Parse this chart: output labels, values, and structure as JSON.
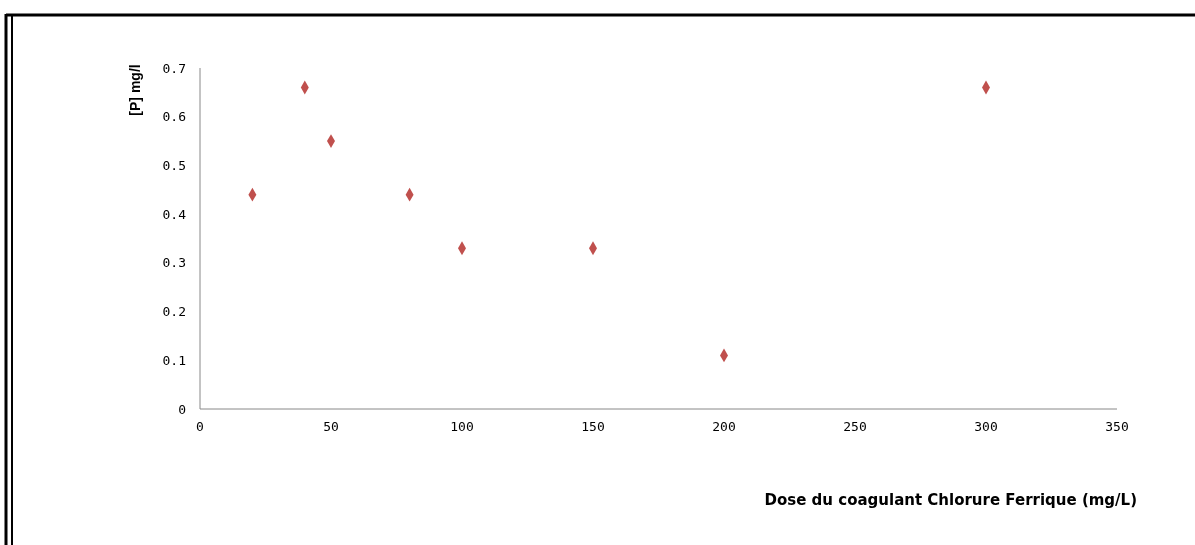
{
  "chart_data": {
    "type": "scatter",
    "xlabel": "Dose du coagulant Chlorure Ferrique (mg/L)",
    "ylabel": "[P] mg/l",
    "x": [
      20,
      40,
      50,
      80,
      100,
      150,
      200,
      300
    ],
    "series": [
      {
        "color": "#c0504d",
        "values": [
          0.44,
          0.66,
          0.55,
          0.44,
          0.33,
          0.33,
          0.11,
          0.66
        ]
      }
    ],
    "xlim": [
      0,
      350
    ],
    "xticks": [
      0,
      50,
      100,
      150,
      200,
      250,
      300,
      350
    ],
    "ylim": [
      0,
      0.7
    ],
    "yticks": [
      {
        "value": 0,
        "label": "0"
      },
      {
        "value": 0.1,
        "label": "0.1"
      },
      {
        "value": 0.2,
        "label": "0.2"
      },
      {
        "value": 0.3,
        "label": "0.3"
      },
      {
        "value": 0.4,
        "label": "0.4"
      },
      {
        "value": 0.5,
        "label": "0.5"
      },
      {
        "value": 0.6,
        "label": "0.6"
      },
      {
        "value": 0.7,
        "label": "0.7"
      }
    ],
    "grid": false,
    "marker": "diamond"
  }
}
